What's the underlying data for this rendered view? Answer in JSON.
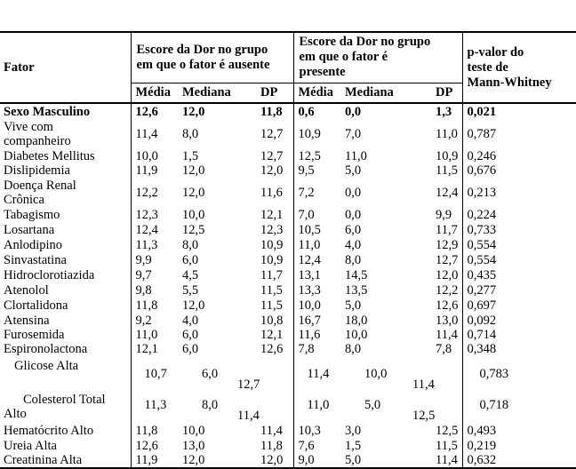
{
  "table": {
    "header": {
      "factor": "Fator",
      "group_absent": "Escore da Dor no grupo\nem que o fator é ausente",
      "group_present": "Escore da Dor no grupo\nem que o fator é\npresente",
      "pvalue": "p-valor do\nteste de\nMann-Whitney",
      "sub_columns": [
        "Média",
        "Mediana",
        "DP"
      ]
    },
    "rows": [
      {
        "factor": "Sexo Masculino",
        "absent": [
          "12,6",
          "12,0",
          "11,8"
        ],
        "present": [
          "0,6",
          "0,0",
          "1,3"
        ],
        "p": "0,021",
        "style": "bold"
      },
      {
        "factor": "Vive com\ncompanheiro",
        "absent": [
          "11,4",
          "8,0",
          "12,7"
        ],
        "present": [
          "10,9",
          "7,0",
          "11,0"
        ],
        "p": "0,787",
        "style": ""
      },
      {
        "factor": "Diabetes Mellitus",
        "absent": [
          "10,0",
          "1,5",
          "12,7"
        ],
        "present": [
          "12,5",
          "11,0",
          "10,9"
        ],
        "p": "0,246",
        "style": ""
      },
      {
        "factor": "Dislipidemia",
        "absent": [
          "11,9",
          "12,0",
          "12,0"
        ],
        "present": [
          "9,5",
          "5,0",
          "11,5"
        ],
        "p": "0,676",
        "style": ""
      },
      {
        "factor": "Doença Renal\nCrônica",
        "absent": [
          "12,2",
          "12,0",
          "11,6"
        ],
        "present": [
          "7,2",
          "0,0",
          "12,4"
        ],
        "p": "0,213",
        "style": ""
      },
      {
        "factor": "Tabagismo",
        "absent": [
          "12,3",
          "10,0",
          "12,1"
        ],
        "present": [
          "7,0",
          "0,0",
          "9,9"
        ],
        "p": "0,224",
        "style": ""
      },
      {
        "factor": "Losartana",
        "absent": [
          "12,4",
          "12,5",
          "12,3"
        ],
        "present": [
          "10,5",
          "6,0",
          "11,7"
        ],
        "p": "0,733",
        "style": ""
      },
      {
        "factor": "Anlodipino",
        "absent": [
          "11,3",
          "8,0",
          "10,9"
        ],
        "present": [
          "11,0",
          "4,0",
          "12,9"
        ],
        "p": "0,554",
        "style": ""
      },
      {
        "factor": "Sinvastatina",
        "absent": [
          "9,9",
          "6,0",
          "10,9"
        ],
        "present": [
          "12,4",
          "8,0",
          "12,7"
        ],
        "p": "0,554",
        "style": ""
      },
      {
        "factor": "Hidroclorotiazida",
        "absent": [
          "9,7",
          "4,5",
          "11,7"
        ],
        "present": [
          "13,1",
          "14,5",
          "12,0"
        ],
        "p": "0,435",
        "style": ""
      },
      {
        "factor": "Atenolol",
        "absent": [
          "9,8",
          "5,5",
          "11,5"
        ],
        "present": [
          "13,3",
          "13,5",
          "12,2"
        ],
        "p": "0,277",
        "style": ""
      },
      {
        "factor": "Clortalidona",
        "absent": [
          "11,8",
          "12,0",
          "11,5"
        ],
        "present": [
          "10,0",
          "5,0",
          "12,6"
        ],
        "p": "0,697",
        "style": ""
      },
      {
        "factor": "Atensina",
        "absent": [
          "9,2",
          "4,0",
          "10,8"
        ],
        "present": [
          "16,7",
          "18,0",
          "13,0"
        ],
        "p": "0,092",
        "style": ""
      },
      {
        "factor": "Furosemida",
        "absent": [
          "11,0",
          "6,0",
          "12,1"
        ],
        "present": [
          "11,6",
          "10,0",
          "11,4"
        ],
        "p": "0,714",
        "style": ""
      },
      {
        "factor": "Espironolactona",
        "absent": [
          "12,1",
          "6,0",
          "12,6"
        ],
        "present": [
          "7,8",
          "8,0",
          "7,8"
        ],
        "p": "0,348",
        "style": ""
      },
      {
        "factor": "Glicose Alta",
        "absent": [
          "10,7",
          "6,0",
          "12,7"
        ],
        "present": [
          "11,4",
          "10,0",
          "11,4"
        ],
        "p": "0,783",
        "style": "special sp-glicose"
      },
      {
        "factor": "Colesterol Total\nAlto",
        "absent": [
          "11,3",
          "8,0",
          "11,4"
        ],
        "present": [
          "11,0",
          "5,0",
          "12,5"
        ],
        "p": "0,718",
        "style": "special sp-colesterol"
      },
      {
        "factor": "Hematócrito Alto",
        "absent": [
          "11,8",
          "10,0",
          "11,4"
        ],
        "present": [
          "10,3",
          "3,0",
          "12,5"
        ],
        "p": "0,493",
        "style": ""
      },
      {
        "factor": "Ureia Alta",
        "absent": [
          "12,6",
          "13,0",
          "11,8"
        ],
        "present": [
          "7,6",
          "1,5",
          "11,5"
        ],
        "p": "0,219",
        "style": ""
      },
      {
        "factor": "Creatinina Alta",
        "absent": [
          "11,9",
          "12,0",
          "12,0"
        ],
        "present": [
          "9,0",
          "5,0",
          "11,4"
        ],
        "p": "0,632",
        "style": ""
      }
    ]
  }
}
